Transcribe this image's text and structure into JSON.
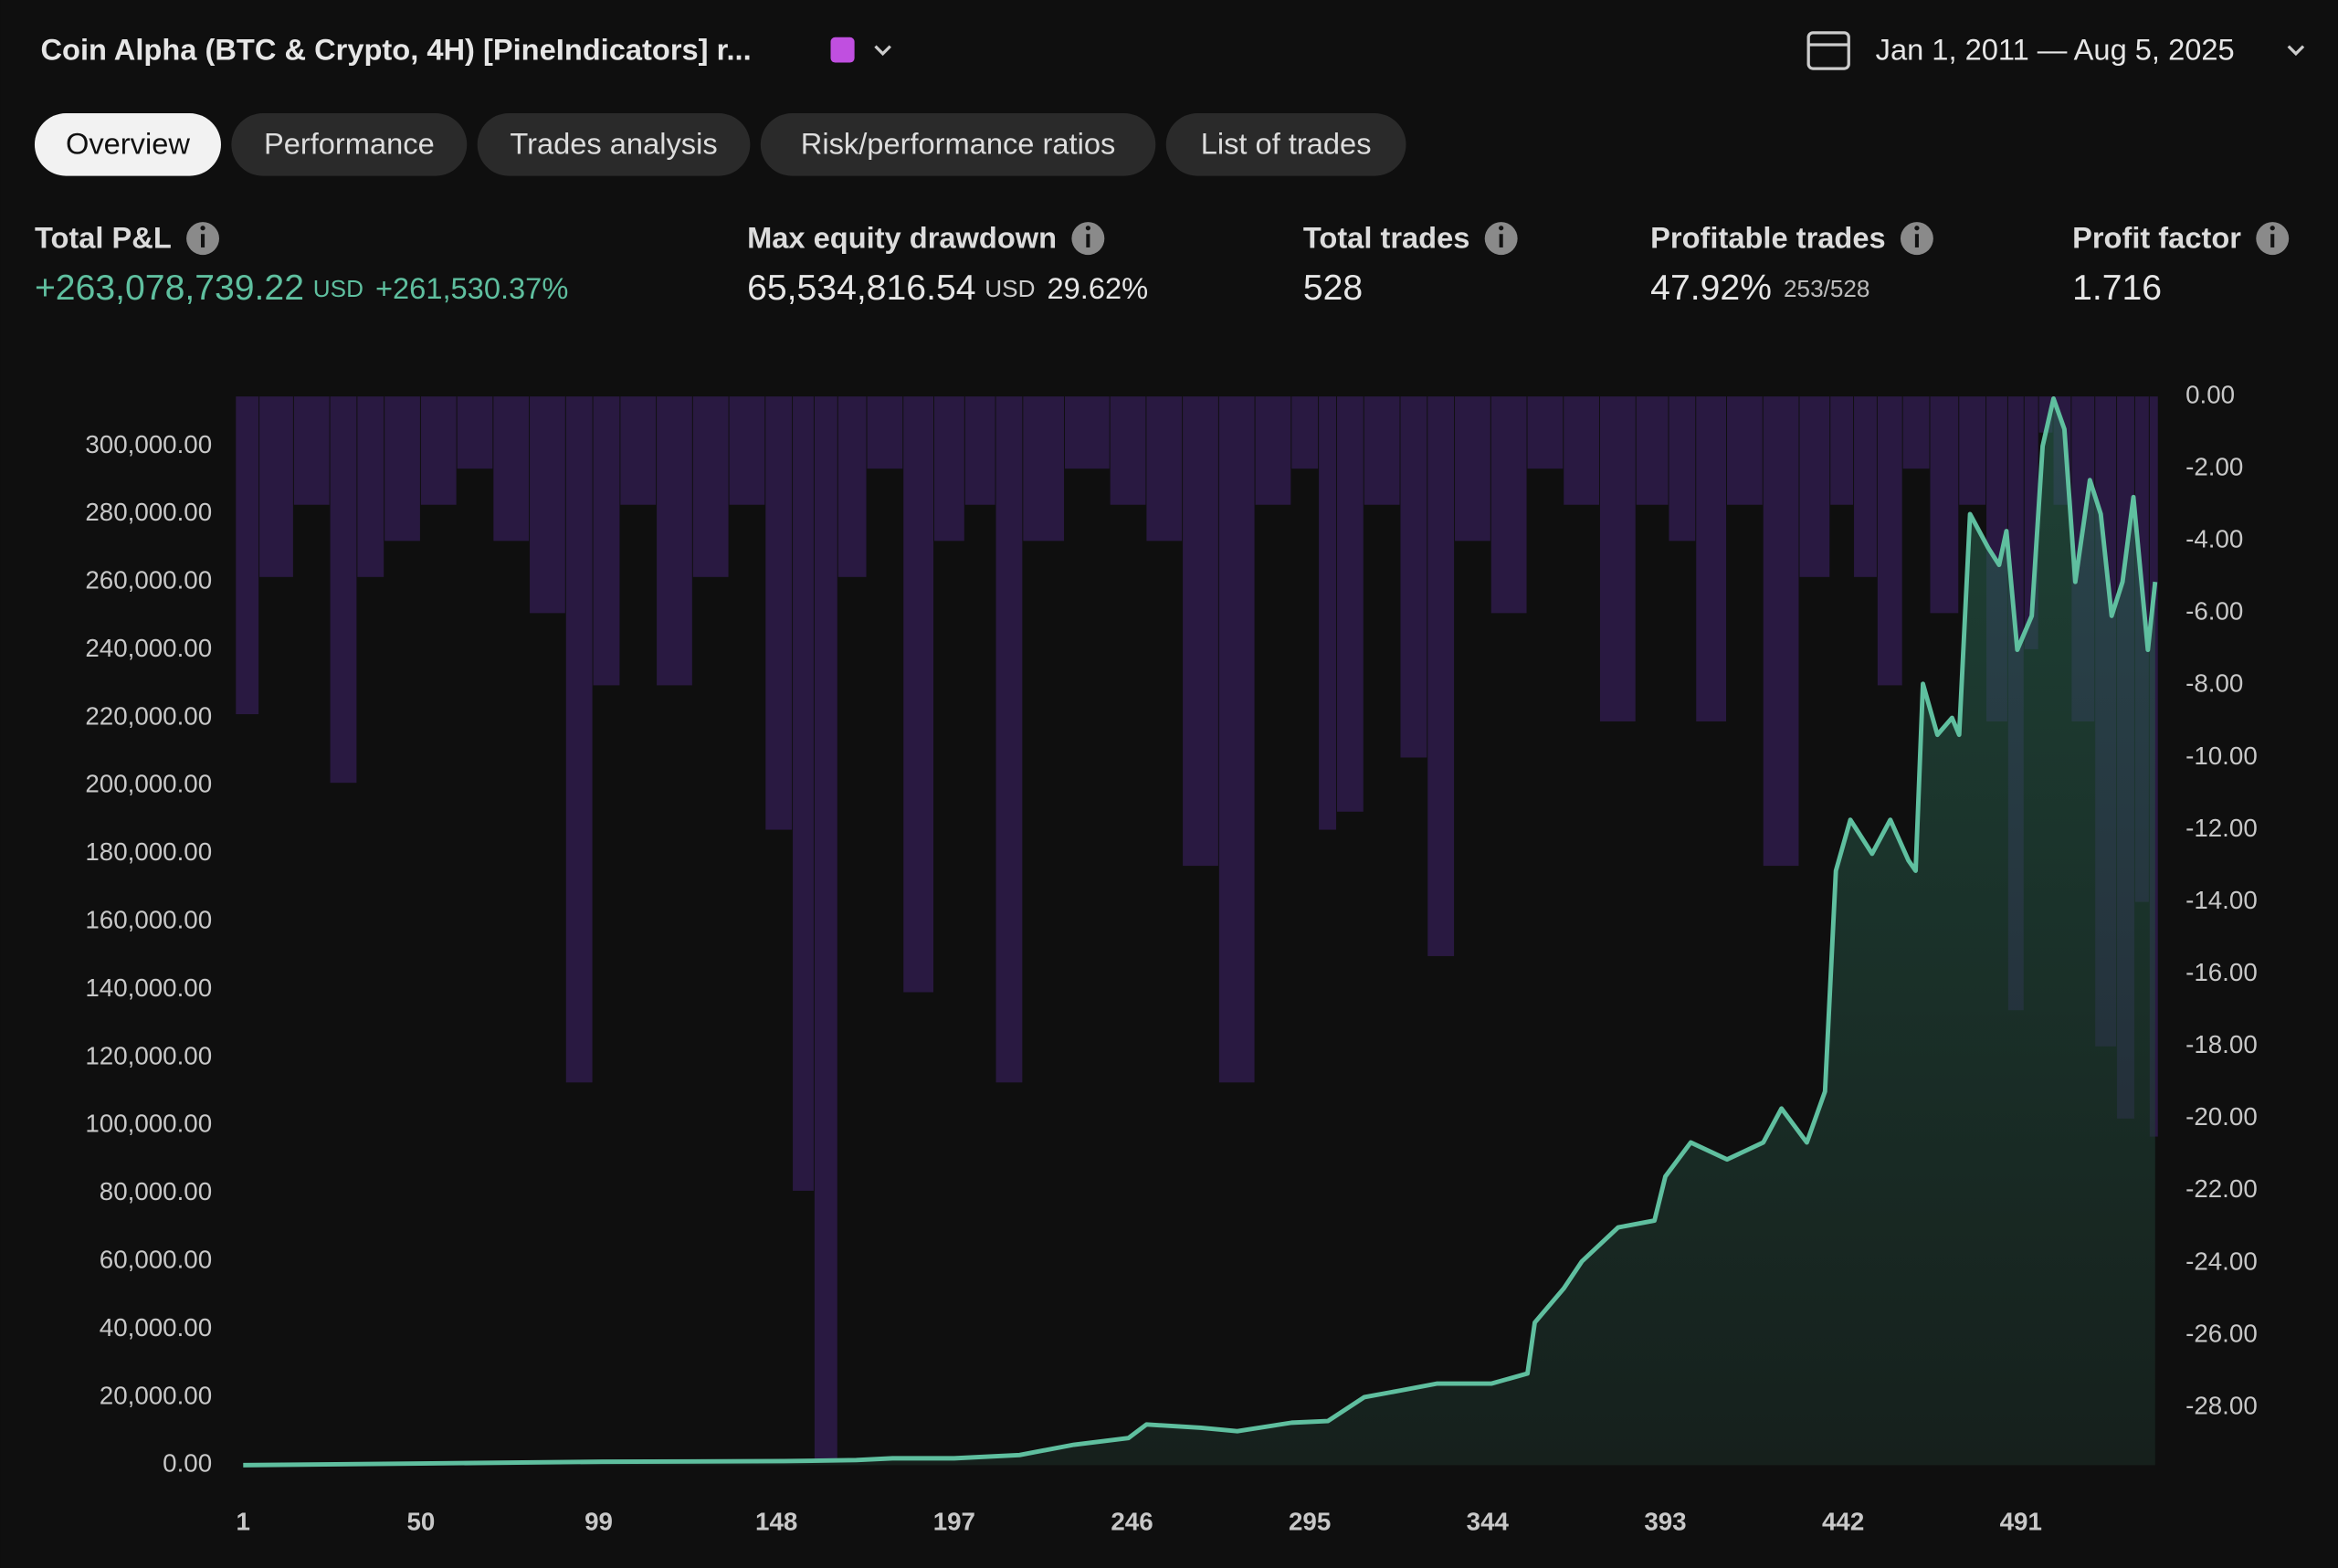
{
  "header": {
    "title": "Coin Alpha (BTC & Crypto, 4H) [PineIndicators] r...",
    "date_range": "Jan 1, 2011 — Aug 5, 2025"
  },
  "tabs": [
    "Overview",
    "Performance",
    "Trades analysis",
    "Risk/performance ratios",
    "List of trades"
  ],
  "stats": [
    {
      "label": "Total P&L",
      "value": "+263,078,739.22",
      "unit": "USD",
      "extra": "+261,530.37%"
    },
    {
      "label": "Max equity drawdown",
      "value": "65,534,816.54",
      "unit": "USD",
      "extra": "29.62%"
    },
    {
      "label": "Total trades",
      "value": "528"
    },
    {
      "label": "Profitable trades",
      "value": "47.92%",
      "extra": "253/528"
    },
    {
      "label": "Profit factor",
      "value": "1.716"
    }
  ],
  "chart_data": {
    "type": "line",
    "xlim": [
      -1,
      529
    ],
    "xticks": [
      1,
      50,
      99,
      148,
      197,
      246,
      295,
      344,
      393,
      442,
      491
    ],
    "ylim": [
      0,
      314600
    ],
    "yticks": [
      {
        "value": 0,
        "label": "0.00"
      },
      {
        "value": 20000,
        "label": "20,000.00"
      },
      {
        "value": 40000,
        "label": "40,000.00"
      },
      {
        "value": 60000,
        "label": "60,000.00"
      },
      {
        "value": 80000,
        "label": "80,000.00"
      },
      {
        "value": 100000,
        "label": "100,000.00"
      },
      {
        "value": 120000,
        "label": "120,000.00"
      },
      {
        "value": 140000,
        "label": "140,000.00"
      },
      {
        "value": 160000,
        "label": "160,000.00"
      },
      {
        "value": 180000,
        "label": "180,000.00"
      },
      {
        "value": 200000,
        "label": "200,000.00"
      },
      {
        "value": 220000,
        "label": "220,000.00"
      },
      {
        "value": 240000,
        "label": "240,000.00"
      },
      {
        "value": 260000,
        "label": "260,000.00"
      },
      {
        "value": 280000,
        "label": "280,000.00"
      },
      {
        "value": 300000,
        "label": "300,000.00"
      }
    ],
    "y2lim": [
      -29.6,
      0
    ],
    "y2ticks": [
      {
        "value": 0,
        "label": "0.00"
      },
      {
        "value": -2,
        "label": "-2.00"
      },
      {
        "value": -4,
        "label": "-4.00"
      },
      {
        "value": -6,
        "label": "-6.00"
      },
      {
        "value": -8,
        "label": "-8.00"
      },
      {
        "value": -10,
        "label": "-10.00"
      },
      {
        "value": -12,
        "label": "-12.00"
      },
      {
        "value": -14,
        "label": "-14.00"
      },
      {
        "value": -16,
        "label": "-16.00"
      },
      {
        "value": -18,
        "label": "-18.00"
      },
      {
        "value": -20,
        "label": "-20.00"
      },
      {
        "value": -22,
        "label": "-22.00"
      },
      {
        "value": -24,
        "label": "-24.00"
      },
      {
        "value": -26,
        "label": "-26.00"
      },
      {
        "value": -28,
        "label": "-28.00"
      }
    ],
    "grid": false,
    "series": [
      {
        "kind": "drawdown",
        "axis": "y2",
        "color": "#2c1b47",
        "x": [
          1,
          10,
          20,
          30,
          35,
          45,
          55,
          65,
          75,
          85,
          95,
          100,
          110,
          120,
          130,
          140,
          150,
          155,
          162,
          168,
          178,
          188,
          195,
          205,
          212,
          220,
          235,
          245,
          255,
          265,
          275,
          285,
          295,
          300,
          305,
          315,
          325,
          330,
          340,
          350,
          360,
          370,
          380,
          390,
          398,
          405,
          415,
          425,
          435,
          442,
          448,
          455,
          462,
          470,
          478,
          485,
          490,
          494,
          498,
          502,
          508,
          515,
          520,
          525,
          528
        ],
        "values": [
          -8.8,
          -5,
          -3,
          -10.7,
          -5,
          -4,
          -3,
          -2,
          -4,
          -6,
          -19,
          -8,
          -3,
          -8,
          -5,
          -3,
          -12,
          -22,
          -29.5,
          -5,
          -2,
          -16.5,
          -4,
          -3,
          -19,
          -4,
          -2,
          -3,
          -4,
          -13,
          -19,
          -3,
          -2,
          -12,
          -11.5,
          -3,
          -10,
          -15.5,
          -4,
          -6,
          -2,
          -3,
          -9,
          -3,
          -4,
          -9,
          -3,
          -13,
          -5,
          -3,
          -5,
          -8,
          -2,
          -6,
          -3,
          -9,
          -17,
          -7,
          -1,
          -3,
          -9,
          -18,
          -20,
          -14,
          -20.5
        ]
      },
      {
        "kind": "equity",
        "color": "#5fbf9f",
        "x": [
          1,
          50,
          100,
          150,
          170,
          180,
          197,
          215,
          230,
          245,
          250,
          265,
          275,
          290,
          300,
          310,
          320,
          330,
          345,
          355,
          357,
          365,
          370,
          380,
          390,
          393,
          400,
          410,
          420,
          425,
          432,
          437,
          440,
          444,
          450,
          455,
          460,
          462,
          464,
          468,
          472,
          474,
          477,
          482,
          485,
          487,
          490,
          494,
          497,
          500,
          503,
          506,
          510,
          513,
          516,
          519,
          522,
          526,
          528
        ],
        "values": [
          0,
          500,
          1000,
          1200,
          1500,
          2000,
          2000,
          3000,
          6000,
          8000,
          12000,
          11000,
          10000,
          12500,
          13000,
          20000,
          22000,
          24000,
          24000,
          27000,
          42000,
          52000,
          60000,
          70000,
          72000,
          85000,
          95000,
          90000,
          95000,
          105000,
          95000,
          110000,
          175000,
          190000,
          180000,
          190000,
          178000,
          175000,
          230000,
          215000,
          220000,
          215000,
          280000,
          270000,
          265000,
          275000,
          240000,
          250000,
          300000,
          314000,
          305000,
          260000,
          290000,
          280000,
          250000,
          260000,
          285000,
          240000,
          260000
        ]
      }
    ]
  }
}
